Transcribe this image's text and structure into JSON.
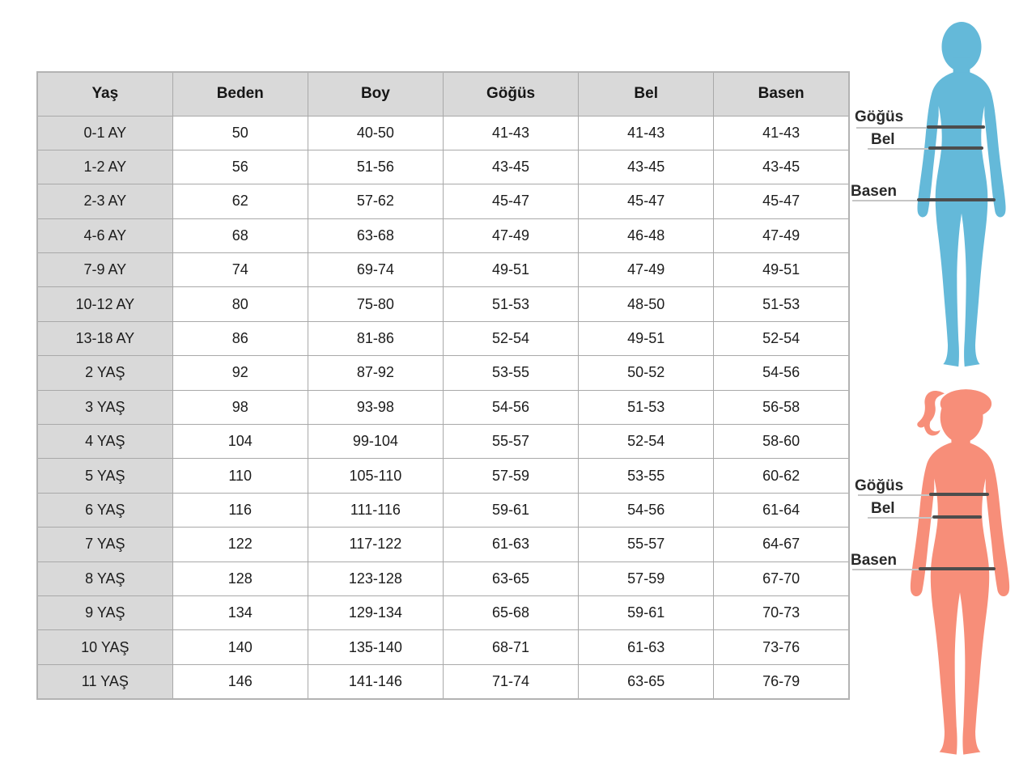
{
  "table": {
    "columns": [
      "Yaş",
      "Beden",
      "Boy",
      "Göğüs",
      "Bel",
      "Basen"
    ],
    "rows": [
      [
        "0-1 AY",
        "50",
        "40-50",
        "41-43",
        "41-43",
        "41-43"
      ],
      [
        "1-2 AY",
        "56",
        "51-56",
        "43-45",
        "43-45",
        "43-45"
      ],
      [
        "2-3 AY",
        "62",
        "57-62",
        "45-47",
        "45-47",
        "45-47"
      ],
      [
        "4-6 AY",
        "68",
        "63-68",
        "47-49",
        "46-48",
        "47-49"
      ],
      [
        "7-9 AY",
        "74",
        "69-74",
        "49-51",
        "47-49",
        "49-51"
      ],
      [
        "10-12 AY",
        "80",
        "75-80",
        "51-53",
        "48-50",
        "51-53"
      ],
      [
        "13-18 AY",
        "86",
        "81-86",
        "52-54",
        "49-51",
        "52-54"
      ],
      [
        "2 YAŞ",
        "92",
        "87-92",
        "53-55",
        "50-52",
        "54-56"
      ],
      [
        "3 YAŞ",
        "98",
        "93-98",
        "54-56",
        "51-53",
        "56-58"
      ],
      [
        "4 YAŞ",
        "104",
        "99-104",
        "55-57",
        "52-54",
        "58-60"
      ],
      [
        "5 YAŞ",
        "110",
        "105-110",
        "57-59",
        "53-55",
        "60-62"
      ],
      [
        "6 YAŞ",
        "116",
        "111-116",
        "59-61",
        "54-56",
        "61-64"
      ],
      [
        "7 YAŞ",
        "122",
        "117-122",
        "61-63",
        "55-57",
        "64-67"
      ],
      [
        "8 YAŞ",
        "128",
        "123-128",
        "63-65",
        "57-59",
        "67-70"
      ],
      [
        "9 YAŞ",
        "134",
        "129-134",
        "65-68",
        "59-61",
        "70-73"
      ],
      [
        "10 YAŞ",
        "140",
        "135-140",
        "68-71",
        "61-63",
        "73-76"
      ],
      [
        "11 YAŞ",
        "146",
        "141-146",
        "71-74",
        "63-65",
        "76-79"
      ]
    ]
  },
  "chart_data": {
    "type": "table",
    "title": "",
    "columns": [
      "Yaş",
      "Beden",
      "Boy",
      "Göğüs",
      "Bel",
      "Basen"
    ],
    "rows": [
      [
        "0-1 AY",
        "50",
        "40-50",
        "41-43",
        "41-43",
        "41-43"
      ],
      [
        "1-2 AY",
        "56",
        "51-56",
        "43-45",
        "43-45",
        "43-45"
      ],
      [
        "2-3 AY",
        "62",
        "57-62",
        "45-47",
        "45-47",
        "45-47"
      ],
      [
        "4-6 AY",
        "68",
        "63-68",
        "47-49",
        "46-48",
        "47-49"
      ],
      [
        "7-9 AY",
        "74",
        "69-74",
        "49-51",
        "47-49",
        "49-51"
      ],
      [
        "10-12 AY",
        "80",
        "75-80",
        "51-53",
        "48-50",
        "51-53"
      ],
      [
        "13-18 AY",
        "86",
        "81-86",
        "52-54",
        "49-51",
        "52-54"
      ],
      [
        "2 YAŞ",
        "92",
        "87-92",
        "53-55",
        "50-52",
        "54-56"
      ],
      [
        "3 YAŞ",
        "98",
        "93-98",
        "54-56",
        "51-53",
        "56-58"
      ],
      [
        "4 YAŞ",
        "104",
        "99-104",
        "55-57",
        "52-54",
        "58-60"
      ],
      [
        "5 YAŞ",
        "110",
        "105-110",
        "57-59",
        "53-55",
        "60-62"
      ],
      [
        "6 YAŞ",
        "116",
        "111-116",
        "59-61",
        "54-56",
        "61-64"
      ],
      [
        "7 YAŞ",
        "122",
        "117-122",
        "61-63",
        "55-57",
        "64-67"
      ],
      [
        "8 YAŞ",
        "128",
        "123-128",
        "63-65",
        "57-59",
        "67-70"
      ],
      [
        "9 YAŞ",
        "134",
        "129-134",
        "65-68",
        "59-61",
        "70-73"
      ],
      [
        "10 YAŞ",
        "140",
        "135-140",
        "68-71",
        "61-63",
        "73-76"
      ],
      [
        "11 YAŞ",
        "146",
        "141-146",
        "71-74",
        "63-65",
        "76-79"
      ]
    ]
  },
  "figures": {
    "boy": {
      "color": "#64b9d9",
      "labels": {
        "chest": "Göğüs",
        "waist": "Bel",
        "hip": "Basen"
      }
    },
    "girl": {
      "color": "#f78e79",
      "labels": {
        "chest": "Göğüs",
        "waist": "Bel",
        "hip": "Basen"
      }
    }
  },
  "colors": {
    "header_bg": "#d9d9d9",
    "row_label_bg": "#d9d9d9",
    "border": "#a9a9a9",
    "measure_line": "#4d4d4d",
    "leader_line": "#c6c6c6",
    "text": "#1f1f1f"
  }
}
